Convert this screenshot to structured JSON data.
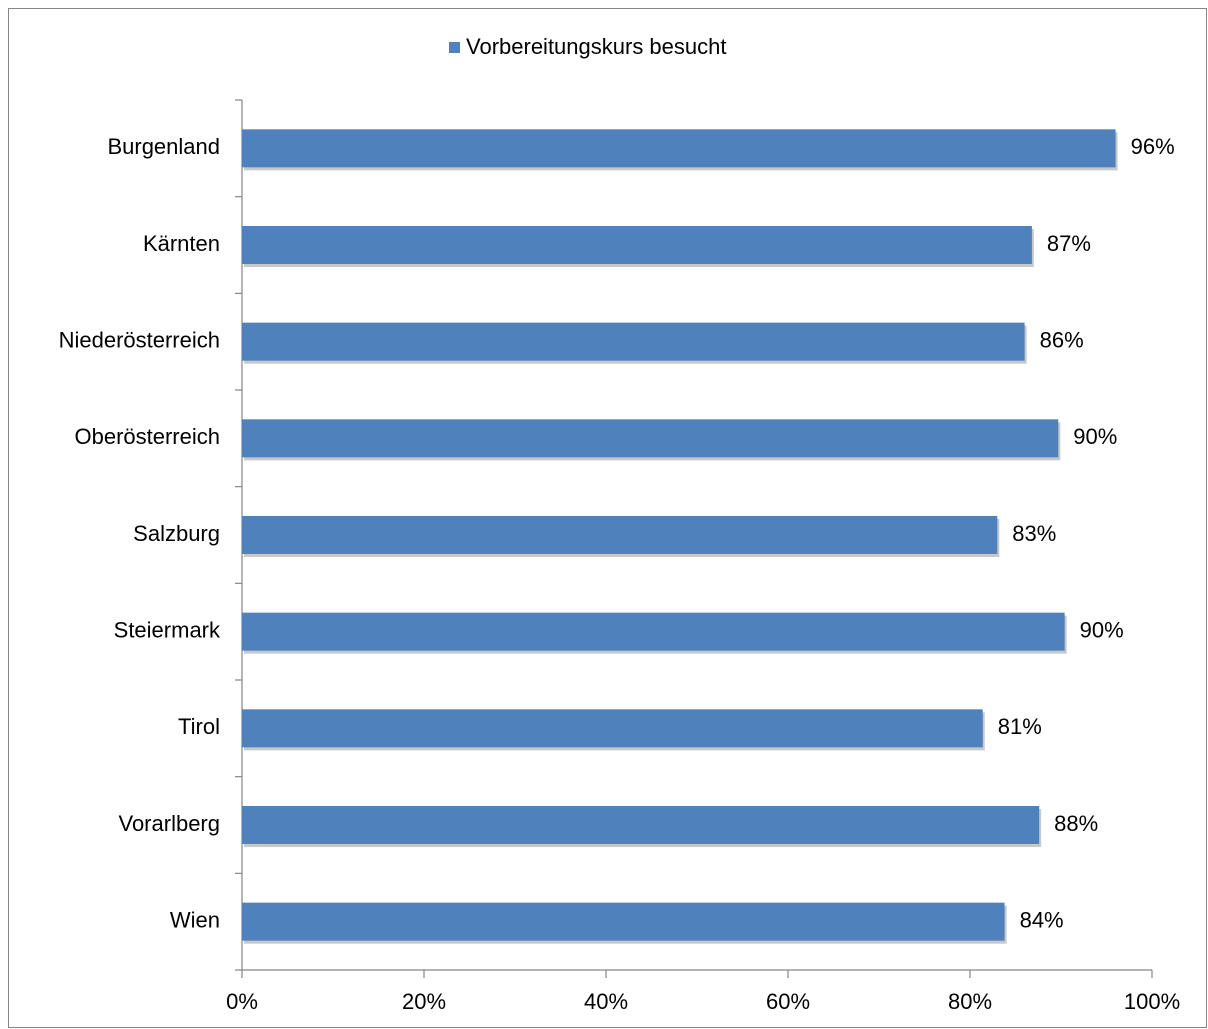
{
  "chart_data": {
    "type": "hbar",
    "legend": "Vorbereitungskurs besucht",
    "color": "#4f81bd",
    "categories": [
      "Burgenland",
      "Kärnten",
      "Niederösterreich",
      "Oberösterreich",
      "Salzburg",
      "Steiermark",
      "Tirol",
      "Vorarlberg",
      "Wien"
    ],
    "values": [
      96.0,
      86.8,
      86.0,
      89.7,
      83.0,
      90.4,
      81.4,
      87.6,
      83.8
    ],
    "value_labels": [
      "96%",
      "87%",
      "86%",
      "90%",
      "83%",
      "90%",
      "81%",
      "88%",
      "84%"
    ],
    "xlim": [
      0,
      100
    ],
    "xticks": [
      {
        "value": 0,
        "label": "0%"
      },
      {
        "value": 20,
        "label": "20%"
      },
      {
        "value": 40,
        "label": "40%"
      },
      {
        "value": 60,
        "label": "60%"
      },
      {
        "value": 80,
        "label": "80%"
      },
      {
        "value": 100,
        "label": "100%"
      }
    ]
  }
}
